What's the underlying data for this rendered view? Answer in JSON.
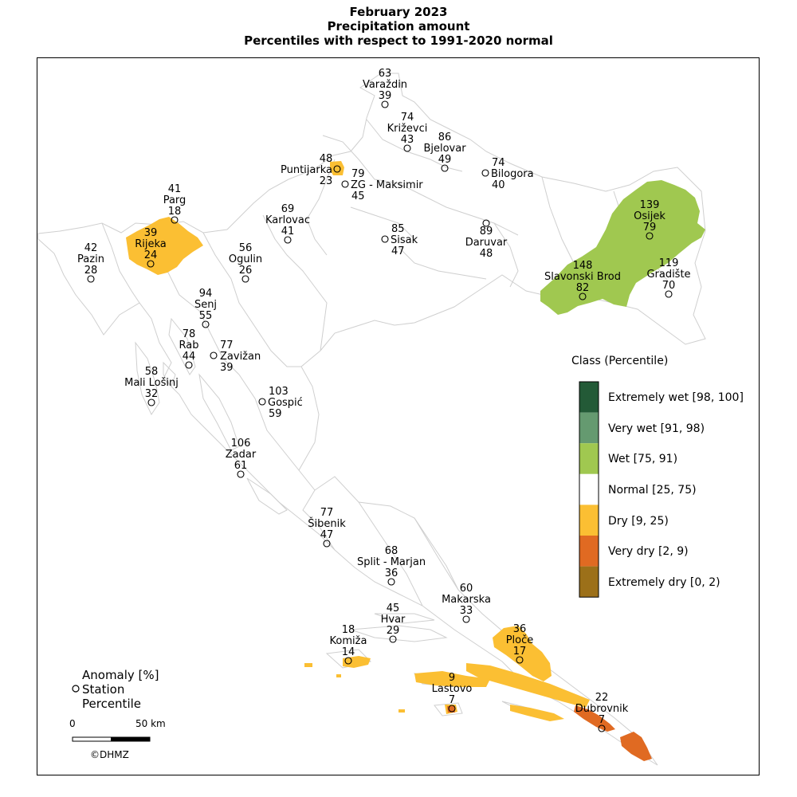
{
  "title": {
    "line1": "February 2023",
    "line2": "Precipitation amount",
    "line3": "Percentiles with respect to 1991-2020 normal"
  },
  "legend": {
    "title": "Class (Percentile)",
    "classes": [
      {
        "label": "Extremely wet [98, 100]",
        "color": "#235a37"
      },
      {
        "label": "Very wet [91, 98)",
        "color": "#659a70"
      },
      {
        "label": "Wet [75, 91)",
        "color": "#a0c850"
      },
      {
        "label": "Normal [25, 75)",
        "color": "#ffffff"
      },
      {
        "label": "Dry [9, 25)",
        "color": "#fbbf33"
      },
      {
        "label": "Very dry [2, 9)",
        "color": "#e06a22"
      },
      {
        "label": "Extremely dry [0, 2)",
        "color": "#9c7019"
      }
    ]
  },
  "key": {
    "anomaly": "Anomaly [%]",
    "station": "Station",
    "percentile": "Percentile"
  },
  "scale": {
    "zero": "0",
    "fifty": "50 km"
  },
  "copyright": "©DHMZ",
  "stations": [
    {
      "name": "Varaždin",
      "anomaly": "63",
      "percentile": "39"
    },
    {
      "name": "Križevci",
      "anomaly": "74",
      "percentile": "43"
    },
    {
      "name": "Bjelovar",
      "anomaly": "86",
      "percentile": "49"
    },
    {
      "name": "Bilogora",
      "anomaly": "74",
      "percentile": "40"
    },
    {
      "name": "Puntijarka",
      "anomaly": "48",
      "percentile": "23"
    },
    {
      "name": "ZG - Maksimir",
      "anomaly": "79",
      "percentile": "45"
    },
    {
      "name": "Parg",
      "anomaly": "41",
      "percentile": "18"
    },
    {
      "name": "Karlovac",
      "anomaly": "69",
      "percentile": "41"
    },
    {
      "name": "Sisak",
      "anomaly": "85",
      "percentile": "47"
    },
    {
      "name": "Daruvar",
      "anomaly": "89",
      "percentile": "48"
    },
    {
      "name": "Osijek",
      "anomaly": "139",
      "percentile": "79"
    },
    {
      "name": "Rijeka",
      "anomaly": "39",
      "percentile": "24"
    },
    {
      "name": "Pazin",
      "anomaly": "42",
      "percentile": "28"
    },
    {
      "name": "Ogulin",
      "anomaly": "56",
      "percentile": "26"
    },
    {
      "name": "Slavonski Brod",
      "anomaly": "148",
      "percentile": "82"
    },
    {
      "name": "Gradište",
      "anomaly": "119",
      "percentile": "70"
    },
    {
      "name": "Senj",
      "anomaly": "94",
      "percentile": "55"
    },
    {
      "name": "Rab",
      "anomaly": "78",
      "percentile": "44"
    },
    {
      "name": "Zavižan",
      "anomaly": "77",
      "percentile": "39"
    },
    {
      "name": "Mali Lošinj",
      "anomaly": "58",
      "percentile": "32"
    },
    {
      "name": "Gospić",
      "anomaly": "103",
      "percentile": "59"
    },
    {
      "name": "Zadar",
      "anomaly": "106",
      "percentile": "61"
    },
    {
      "name": "Šibenik",
      "anomaly": "77",
      "percentile": "47"
    },
    {
      "name": "Split - Marjan",
      "anomaly": "68",
      "percentile": "36"
    },
    {
      "name": "Makarska",
      "anomaly": "60",
      "percentile": "33"
    },
    {
      "name": "Hvar",
      "anomaly": "45",
      "percentile": "29"
    },
    {
      "name": "Komiža",
      "anomaly": "18",
      "percentile": "14"
    },
    {
      "name": "Ploče",
      "anomaly": "36",
      "percentile": "17"
    },
    {
      "name": "Lastovo",
      "anomaly": "9",
      "percentile": "7"
    },
    {
      "name": "Dubrovnik",
      "anomaly": "22",
      "percentile": "7"
    }
  ]
}
